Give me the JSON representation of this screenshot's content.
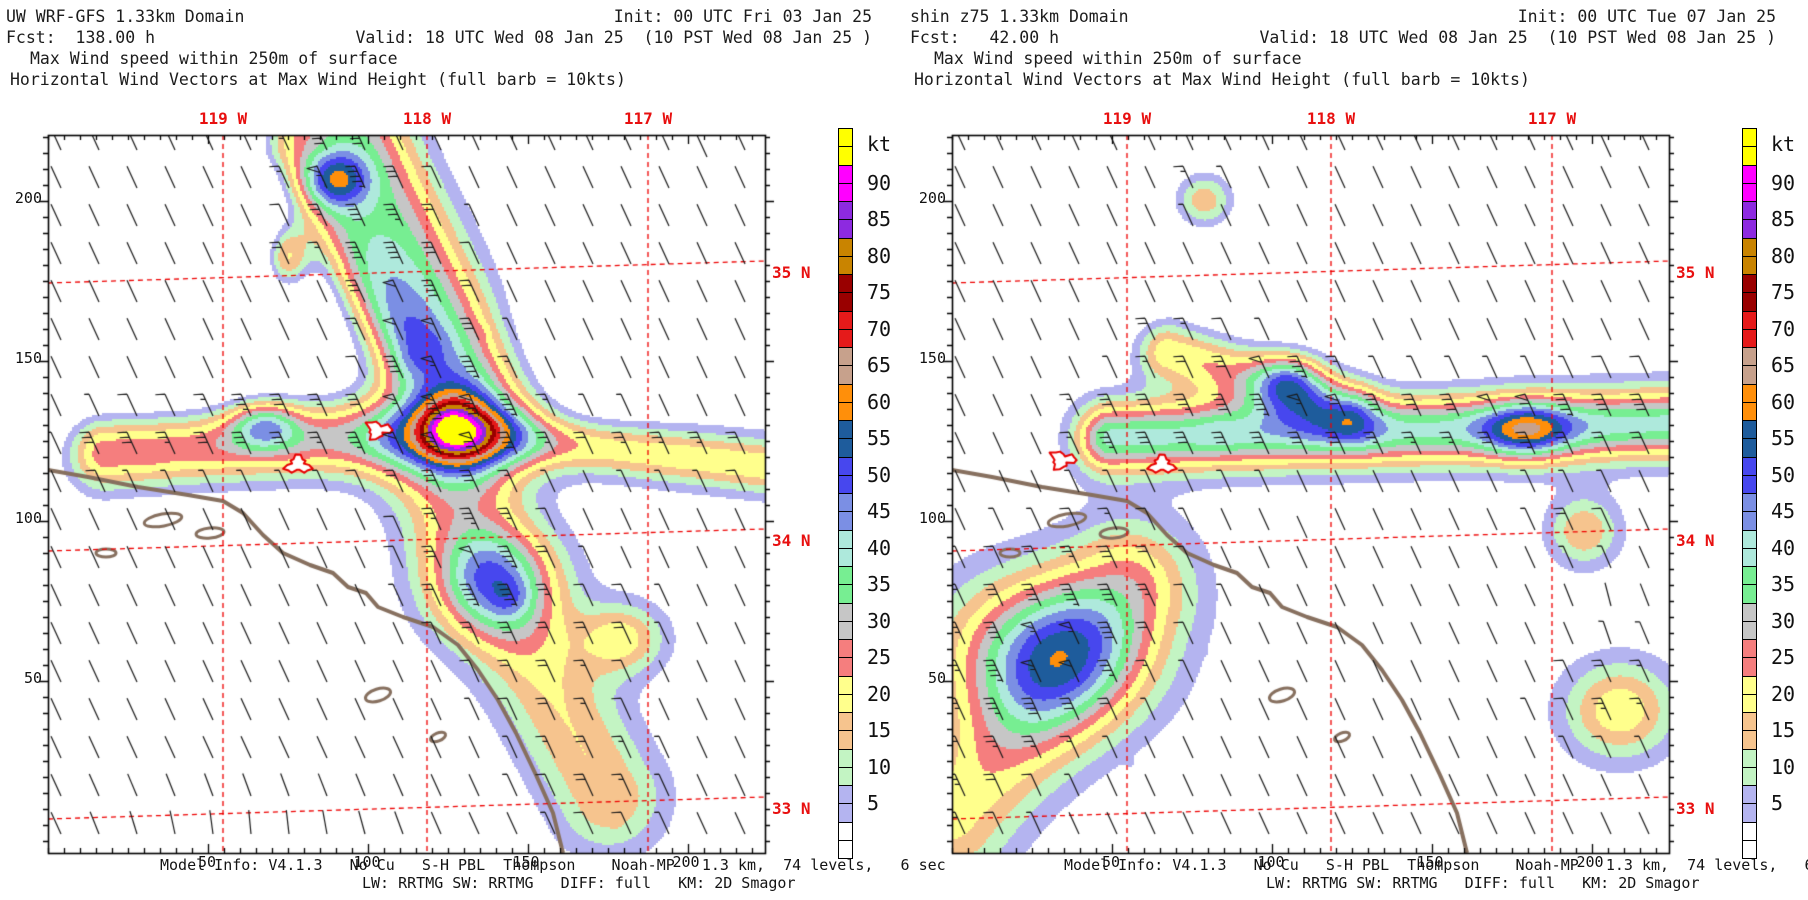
{
  "panels": [
    {
      "id": "uw-wrf-gfs",
      "header": {
        "model_line": "UW WRF-GFS 1.33km Domain",
        "init_line": "Init: 00 UTC Fri 03 Jan 25",
        "fcst_line": "Fcst:  138.00 h",
        "valid_line": "Valid: 18 UTC Wed 08 Jan 25  (10 PST Wed 08 Jan 25 )",
        "field_line": "Max Wind speed within 250m of surface",
        "vector_line": "Horizontal Wind Vectors at Max Wind Height (full barb = 10kts)"
      }
    },
    {
      "id": "shin-z75",
      "header": {
        "model_line": "shin z75 1.33km Domain",
        "init_line": "Init: 00 UTC Tue 07 Jan 25",
        "fcst_line": "Fcst:   42.00 h",
        "valid_line": "Valid: 18 UTC Wed 08 Jan 25  (10 PST Wed 08 Jan 25 )",
        "field_line": "Max Wind speed within 250m of surface",
        "vector_line": "Horizontal Wind Vectors at Max Wind Height (full barb = 10kts)"
      }
    }
  ],
  "axes": {
    "x_tick_labels": [
      "50",
      "100",
      "150",
      "200"
    ],
    "y_tick_labels": [
      "200",
      "150",
      "100",
      "50"
    ],
    "lon_labels": [
      "119 W",
      "118 W",
      "117 W"
    ],
    "lat_labels": [
      "35 N",
      "34 N",
      "33 N"
    ]
  },
  "colorbar": {
    "unit": "kt",
    "labels_top_to_bottom": [
      "90",
      "85",
      "80",
      "75",
      "70",
      "65",
      "60",
      "55",
      "50",
      "45",
      "40",
      "35",
      "30",
      "25",
      "20",
      "15",
      "10",
      "5"
    ],
    "colors_top_to_bottom": [
      "#ffff00",
      "#ff00ff",
      "#8d2ae0",
      "#c98400",
      "#990000",
      "#e51a1a",
      "#c7a18c",
      "#ff8f0a",
      "#1e5c9c",
      "#4747ee",
      "#7b8fe4",
      "#aee9dc",
      "#77ee92",
      "#c6c6c6",
      "#f57e7e",
      "#ffff8c",
      "#f6c48e",
      "#c3f4c3",
      "#b4b4f0",
      "#ffffff"
    ]
  },
  "footer": {
    "line1": "Model Info: V4.1.3   No Cu   S-H PBL  Thompson    Noah-MP   1.3 km,  74 levels,   6 sec",
    "line2": "LW: RRTMG SW: RRTMG   DIFF: full   KM: 2D Smagor"
  },
  "chart_data": [
    {
      "type": "heatmap",
      "title": "Max Wind speed within 250m of surface",
      "subtitle": "Horizontal Wind Vectors at Max Wind Height (full barb = 10kts)",
      "model": "UW WRF-GFS 1.33km Domain",
      "init": "00 UTC Fri 03 Jan 25",
      "forecast_hour": 138.0,
      "valid": "18 UTC Wed 08 Jan 25 (10 PST Wed 08 Jan 25)",
      "unit": "kt",
      "levels_kt": [
        5,
        10,
        15,
        20,
        25,
        30,
        35,
        40,
        45,
        50,
        55,
        60,
        65,
        70,
        75,
        80,
        85,
        90
      ],
      "palette_low_to_high": [
        "#ffffff",
        "#b4b4f0",
        "#c3f4c3",
        "#f6c48e",
        "#ffff8c",
        "#f57e7e",
        "#c6c6c6",
        "#77ee92",
        "#aee9dc",
        "#7b8fe4",
        "#4747ee",
        "#1e5c9c",
        "#ff8f0a",
        "#c7a18c",
        "#e51a1a",
        "#990000",
        "#c98400",
        "#8d2ae0",
        "#ff00ff",
        "#ffff00"
      ],
      "x_axis": {
        "ticks": [
          50,
          100,
          150,
          200
        ],
        "range": [
          0,
          225
        ]
      },
      "y_axis": {
        "ticks": [
          50,
          100,
          150,
          200
        ],
        "range": [
          0,
          224
        ]
      },
      "longitude_lines_deg_w": [
        119,
        118,
        117
      ],
      "latitude_lines_deg_n": [
        35,
        34,
        33
      ],
      "wind_barb_full_barb_kt": 10,
      "legend_position": "right",
      "description": "Filled contour map of maximum wind speed (kt) within 250 m of the surface over Southern California; calm lavender area NW, strong NW-SE band of 45-80+ kt (dark blue/orange/red cores) through the domain center, moderate 15-35 kt elsewhere; black wind barbs, red dashed lat/lon graticule, brown coastline."
    },
    {
      "type": "heatmap",
      "title": "Max Wind speed within 250m of surface",
      "subtitle": "Horizontal Wind Vectors at Max Wind Height (full barb = 10kts)",
      "model": "shin z75 1.33km Domain",
      "init": "00 UTC Tue 07 Jan 25",
      "forecast_hour": 42.0,
      "valid": "18 UTC Wed 08 Jan 25 (10 PST Wed 08 Jan 25)",
      "unit": "kt",
      "levels_kt": [
        5,
        10,
        15,
        20,
        25,
        30,
        35,
        40,
        45,
        50,
        55,
        60,
        65,
        70,
        75,
        80,
        85,
        90
      ],
      "palette_low_to_high": [
        "#ffffff",
        "#b4b4f0",
        "#c3f4c3",
        "#f6c48e",
        "#ffff8c",
        "#f57e7e",
        "#c6c6c6",
        "#77ee92",
        "#aee9dc",
        "#7b8fe4",
        "#4747ee",
        "#1e5c9c",
        "#ff8f0a",
        "#c7a18c",
        "#e51a1a",
        "#990000",
        "#c98400",
        "#8d2ae0",
        "#ff00ff",
        "#ffff00"
      ],
      "x_axis": {
        "ticks": [
          50,
          100,
          150,
          200
        ],
        "range": [
          0,
          225
        ]
      },
      "y_axis": {
        "ticks": [
          50,
          100,
          150,
          200
        ],
        "range": [
          0,
          224
        ]
      },
      "longitude_lines_deg_w": [
        119,
        118,
        117
      ],
      "latitude_lines_deg_n": [
        35,
        34,
        33
      ],
      "wind_barb_full_barb_kt": 10,
      "legend_position": "right",
      "description": "Same field from a different run: east-west band of 45-80 kt winds across the center-right with red/dark-red cores, large 50-65 kt blob with orange core in the southwest, yellows/salmons (15-30 kt) over the north and east."
    }
  ]
}
